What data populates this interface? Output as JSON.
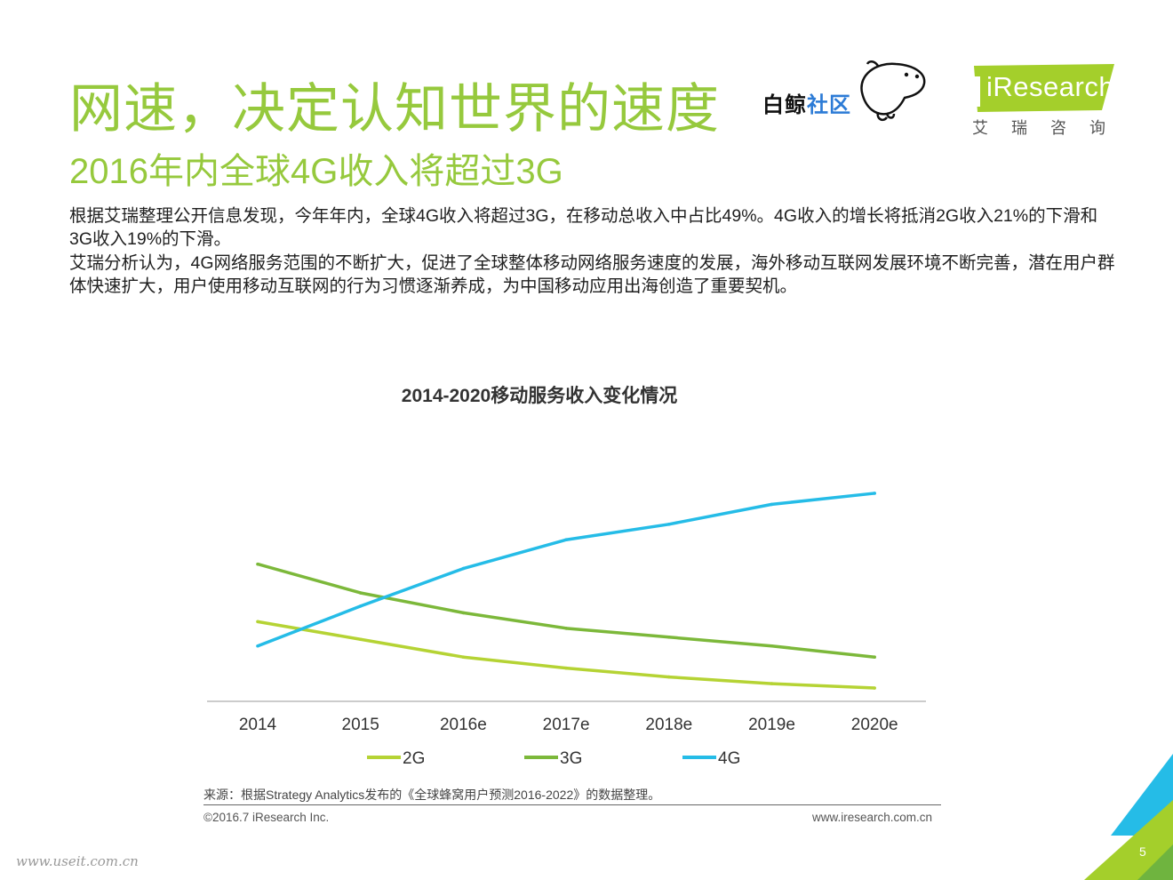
{
  "header": {
    "title": "网速，决定认知世界的速度",
    "subtitle": "2016年内全球4G收入将超过3G"
  },
  "logos": {
    "whale_text_a": "白鲸",
    "whale_text_b": "社区",
    "iresearch_en": "iResearch",
    "iresearch_cn": "艾瑞咨询"
  },
  "body": {
    "paragraph1": "根据艾瑞整理公开信息发现，今年年内，全球4G收入将超过3G，在移动总收入中占比49%。4G收入的增长将抵消2G收入21%的下滑和3G收入19%的下滑。",
    "paragraph2": "艾瑞分析认为，4G网络服务范围的不断扩大，促进了全球整体移动网络服务速度的发展，海外移动互联网发展环境不断完善，潜在用户群体快速扩大，用户使用移动互联网的行为习惯逐渐养成，为中国移动应用出海创造了重要契机。"
  },
  "chart_data": {
    "type": "line",
    "title": "2014-2020移动服务收入变化情况",
    "categories": [
      "2014",
      "2015",
      "2016e",
      "2017e",
      "2018e",
      "2019e",
      "2020e"
    ],
    "ylim": [
      0,
      100
    ],
    "series": [
      {
        "name": "2G",
        "color": "#b5d334",
        "values": [
          36,
          28,
          20,
          15,
          11,
          8,
          6
        ]
      },
      {
        "name": "3G",
        "color": "#7cb83a",
        "values": [
          62,
          49,
          40,
          33,
          29,
          25,
          20
        ]
      },
      {
        "name": "4G",
        "color": "#25bce7",
        "values": [
          25,
          43,
          60,
          73,
          80,
          89,
          94
        ]
      }
    ],
    "xlabel": "",
    "ylabel": "",
    "grid": false,
    "legend": "bottom"
  },
  "footer": {
    "source": "来源：根据Strategy Analytics发布的《全球蜂窝用户预测2016-2022》的数据整理。",
    "copyright": "©2016.7 iResearch Inc.",
    "website": "www.iresearch.com.cn",
    "watermark": "www.useit.com.cn",
    "page_number": "5"
  },
  "colors": {
    "accent_green": "#96c93d",
    "brand_blue": "#25bce7"
  }
}
